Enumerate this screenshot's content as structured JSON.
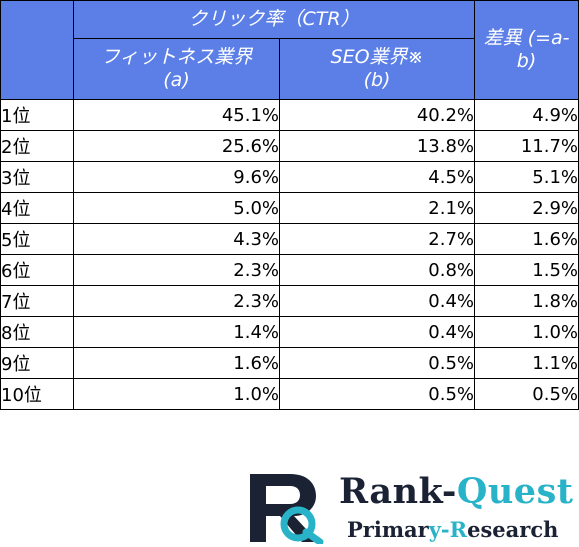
{
  "table": {
    "header": {
      "group_label": "クリック率（CTR）",
      "col_a": {
        "line1": "フィットネス業界",
        "line2": "(a)"
      },
      "col_b": {
        "line1": "SEO業界※",
        "line2": "(b)"
      },
      "col_diff": {
        "line1": "差異",
        "line2": "(=a-b)"
      }
    },
    "rows": [
      {
        "rank": "1位",
        "a": "45.1%",
        "b": "40.2%",
        "diff": "4.9%"
      },
      {
        "rank": "2位",
        "a": "25.6%",
        "b": "13.8%",
        "diff": "11.7%"
      },
      {
        "rank": "3位",
        "a": "9.6%",
        "b": "4.5%",
        "diff": "5.1%"
      },
      {
        "rank": "4位",
        "a": "5.0%",
        "b": "2.1%",
        "diff": "2.9%"
      },
      {
        "rank": "5位",
        "a": "4.3%",
        "b": "2.7%",
        "diff": "1.6%"
      },
      {
        "rank": "6位",
        "a": "2.3%",
        "b": "0.8%",
        "diff": "1.5%"
      },
      {
        "rank": "7位",
        "a": "2.3%",
        "b": "0.4%",
        "diff": "1.8%"
      },
      {
        "rank": "8位",
        "a": "1.4%",
        "b": "0.4%",
        "diff": "1.0%"
      },
      {
        "rank": "9位",
        "a": "1.6%",
        "b": "0.5%",
        "diff": "1.1%"
      },
      {
        "rank": "10位",
        "a": "1.0%",
        "b": "0.5%",
        "diff": "0.5%"
      }
    ]
  },
  "colors": {
    "header_bg": "#5b7fe6",
    "header_text": "#ffffff",
    "border": "#000000",
    "logo_dark": "#1a2233",
    "logo_accent": "#29b3c8"
  },
  "logo": {
    "icon": "rq-monogram-icon",
    "title_part1": "Rank-",
    "title_part2": "Quest",
    "subtitle_part1": "Primar",
    "subtitle_part2": "y-R",
    "subtitle_part3": "esearch"
  }
}
